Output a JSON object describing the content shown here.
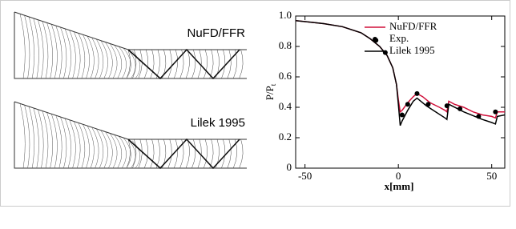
{
  "panels": [
    {
      "label": "NuFD/FFR"
    },
    {
      "label": "Lilek 1995"
    }
  ],
  "chart_data": {
    "type": "line",
    "xlabel": "x[mm]",
    "ylabel": "P/P",
    "ylabel_sub": "t",
    "xlim": [
      -55,
      57
    ],
    "xticks": [
      -50,
      0,
      50
    ],
    "ylim": [
      0,
      1
    ],
    "yticks": [
      0,
      0.2,
      0.4,
      0.6,
      0.8,
      {
        "value": 1,
        "label": "1.0"
      }
    ],
    "legend": "upper right",
    "series": [
      {
        "name": "NuFD/FFR",
        "color": "#d0103a",
        "style": "line",
        "x": [
          -55,
          -40,
          -30,
          -20,
          -15,
          -10,
          -6,
          -3,
          -1,
          0,
          1,
          2,
          5,
          8,
          10,
          13,
          17,
          22,
          25,
          26,
          27,
          30,
          35,
          40,
          45,
          50,
          52,
          53,
          57
        ],
        "values": [
          0.97,
          0.95,
          0.93,
          0.89,
          0.85,
          0.8,
          0.74,
          0.66,
          0.55,
          0.45,
          0.37,
          0.38,
          0.43,
          0.47,
          0.49,
          0.47,
          0.43,
          0.4,
          0.38,
          0.37,
          0.44,
          0.42,
          0.4,
          0.37,
          0.35,
          0.34,
          0.33,
          0.37,
          0.37
        ]
      },
      {
        "name": "Exp.",
        "color": "#000000",
        "style": "markers",
        "x": [
          -12,
          -7,
          2,
          5,
          10,
          16,
          26,
          33,
          43,
          52
        ],
        "values": [
          0.84,
          0.76,
          0.35,
          0.42,
          0.49,
          0.42,
          0.41,
          0.39,
          0.34,
          0.37
        ]
      },
      {
        "name": "Lilek 1995",
        "color": "#000000",
        "style": "line",
        "x": [
          -55,
          -40,
          -30,
          -20,
          -15,
          -10,
          -6,
          -3,
          -1,
          0,
          1,
          2,
          5,
          8,
          10,
          15,
          20,
          25,
          26,
          27,
          35,
          45,
          50,
          52,
          53,
          57
        ],
        "values": [
          0.97,
          0.95,
          0.93,
          0.89,
          0.85,
          0.8,
          0.74,
          0.66,
          0.55,
          0.42,
          0.28,
          0.31,
          0.38,
          0.44,
          0.46,
          0.41,
          0.37,
          0.33,
          0.32,
          0.42,
          0.37,
          0.32,
          0.3,
          0.29,
          0.34,
          0.35
        ]
      }
    ]
  }
}
